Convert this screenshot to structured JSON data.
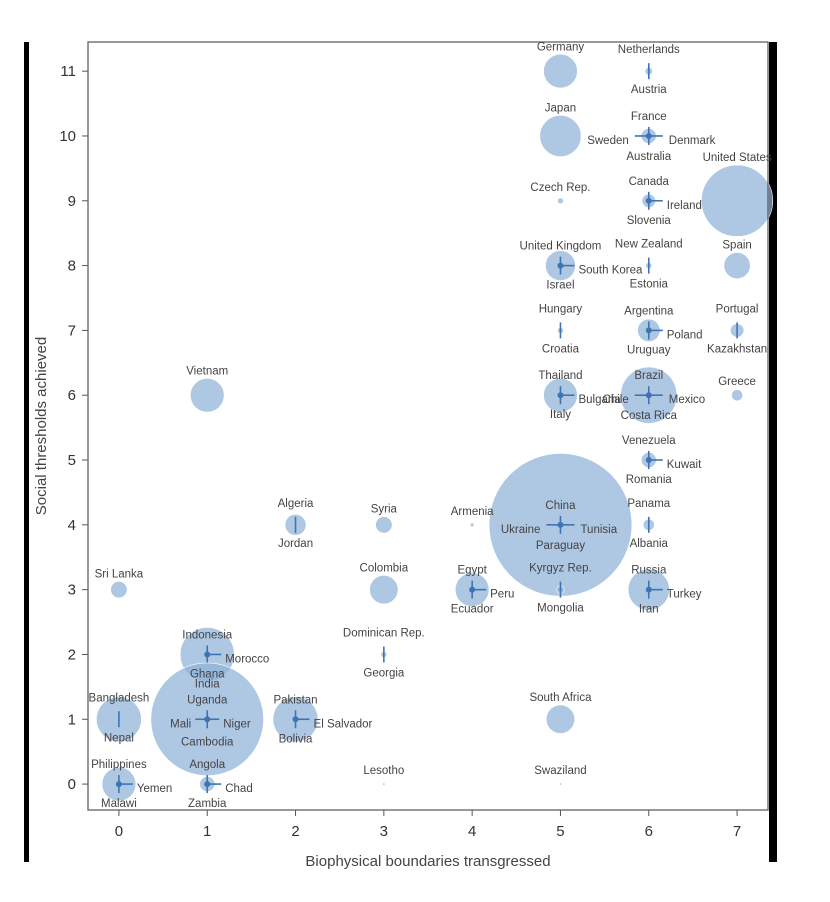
{
  "chart_data": {
    "type": "scatter",
    "title": "",
    "xlabel": "Biophysical boundaries transgressed",
    "ylabel": "Social thresholds achieved",
    "xlim": [
      -0.35,
      7.35
    ],
    "ylim": [
      -0.4,
      11.45
    ],
    "xticks": [
      "0",
      "1",
      "2",
      "3",
      "4",
      "5",
      "6",
      "7"
    ],
    "yticks": [
      "0",
      "1",
      "2",
      "3",
      "4",
      "5",
      "6",
      "7",
      "8",
      "9",
      "10",
      "11"
    ],
    "grid": false,
    "colors": {
      "bubble": "#8fb2d8",
      "dot": "#3f74b3",
      "frame": "#555555"
    },
    "points": [
      {
        "x": 5,
        "y": 11,
        "size": 0.45,
        "labels": [
          "Germany"
        ]
      },
      {
        "x": 6,
        "y": 11,
        "size": 0.1,
        "labels": [
          "Netherlands",
          "Austria"
        ]
      },
      {
        "x": 5,
        "y": 10,
        "size": 0.55,
        "labels": [
          "Japan"
        ]
      },
      {
        "x": 6,
        "y": 10,
        "size": 0.2,
        "labels": [
          "France",
          "Sweden",
          "Denmark",
          "Australia"
        ]
      },
      {
        "x": 5,
        "y": 9,
        "size": 0.08,
        "labels": [
          "Czech Rep."
        ]
      },
      {
        "x": 6,
        "y": 9,
        "size": 0.18,
        "labels": [
          "Canada",
          "Ireland",
          "Slovenia"
        ]
      },
      {
        "x": 7,
        "y": 9,
        "size": 0.95,
        "labels": [
          "United States"
        ]
      },
      {
        "x": 5,
        "y": 8,
        "size": 0.4,
        "labels": [
          "United Kingdom",
          "South Korea",
          "Israel"
        ]
      },
      {
        "x": 6,
        "y": 8,
        "size": 0.08,
        "labels": [
          "New Zealand",
          "Estonia"
        ]
      },
      {
        "x": 7,
        "y": 8,
        "size": 0.35,
        "labels": [
          "Spain"
        ]
      },
      {
        "x": 5,
        "y": 7,
        "size": 0.08,
        "labels": [
          "Hungary",
          "Croatia"
        ]
      },
      {
        "x": 6,
        "y": 7,
        "size": 0.3,
        "labels": [
          "Argentina",
          "Poland",
          "Uruguay"
        ]
      },
      {
        "x": 7,
        "y": 7,
        "size": 0.18,
        "labels": [
          "Portugal",
          "Kazakhstan"
        ]
      },
      {
        "x": 1,
        "y": 6,
        "size": 0.45,
        "labels": [
          "Vietnam"
        ]
      },
      {
        "x": 5,
        "y": 6,
        "size": 0.45,
        "labels": [
          "Thailand",
          "Bulgaria",
          "Italy"
        ]
      },
      {
        "x": 6,
        "y": 6,
        "size": 0.75,
        "labels": [
          "Brazil",
          "Chile",
          "Mexico",
          "Costa Rica"
        ]
      },
      {
        "x": 7,
        "y": 6,
        "size": 0.15,
        "labels": [
          "Greece"
        ]
      },
      {
        "x": 6,
        "y": 5,
        "size": 0.2,
        "labels": [
          "Venezuela",
          "Kuwait",
          "Romania"
        ]
      },
      {
        "x": 2,
        "y": 4,
        "size": 0.28,
        "labels": [
          "Algeria",
          "Jordan"
        ]
      },
      {
        "x": 3,
        "y": 4,
        "size": 0.22,
        "labels": [
          "Syria"
        ]
      },
      {
        "x": 4,
        "y": 4,
        "size": 0.05,
        "labels": [
          "Armenia"
        ]
      },
      {
        "x": 5,
        "y": 4,
        "size": 1.9,
        "labels": [
          "China",
          "Ukraine",
          "Tunisia",
          "Paraguay"
        ]
      },
      {
        "x": 6,
        "y": 4,
        "size": 0.15,
        "labels": [
          "Panama",
          "Albania"
        ]
      },
      {
        "x": 0,
        "y": 3,
        "size": 0.22,
        "labels": [
          "Sri Lanka"
        ]
      },
      {
        "x": 3,
        "y": 3,
        "size": 0.38,
        "labels": [
          "Colombia"
        ]
      },
      {
        "x": 4,
        "y": 3,
        "size": 0.45,
        "labels": [
          "Egypt",
          "Peru",
          "Ecuador"
        ]
      },
      {
        "x": 5,
        "y": 3,
        "size": 0.1,
        "labels": [
          "Kyrgyz Rep.",
          "Mongolia"
        ]
      },
      {
        "x": 6,
        "y": 3,
        "size": 0.55,
        "labels": [
          "Russia",
          "Turkey",
          "Iran"
        ]
      },
      {
        "x": 1,
        "y": 2,
        "size": 0.72,
        "labels": [
          "Indonesia",
          "Morocco",
          "Ghana"
        ]
      },
      {
        "x": 3,
        "y": 2,
        "size": 0.08,
        "labels": [
          "Dominican Rep.",
          "Georgia"
        ]
      },
      {
        "x": 0,
        "y": 1,
        "size": 0.6,
        "labels": [
          "Bangladesh",
          "Nepal"
        ]
      },
      {
        "x": 1,
        "y": 1,
        "size": 1.5,
        "labels": [
          "India",
          "Uganda",
          "Mali",
          "Niger",
          "Cambodia"
        ]
      },
      {
        "x": 2,
        "y": 1,
        "size": 0.6,
        "labels": [
          "Pakistan",
          "El Salvador",
          "Bolivia"
        ]
      },
      {
        "x": 5,
        "y": 1,
        "size": 0.38,
        "labels": [
          "South Africa"
        ]
      },
      {
        "x": 0,
        "y": 0,
        "size": 0.45,
        "labels": [
          "Philippines",
          "Yemen",
          "Malawi"
        ]
      },
      {
        "x": 1,
        "y": 0,
        "size": 0.2,
        "labels": [
          "Angola",
          "Chad",
          "Zambia"
        ]
      },
      {
        "x": 3,
        "y": 0,
        "size": 0.03,
        "labels": [
          "Lesotho"
        ]
      },
      {
        "x": 5,
        "y": 0,
        "size": 0.03,
        "labels": [
          "Swaziland"
        ]
      }
    ]
  }
}
